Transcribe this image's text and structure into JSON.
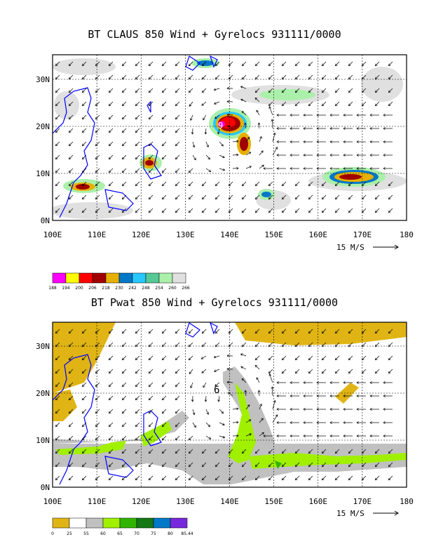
{
  "panels": [
    {
      "title": "BT CLAUS 850 Wind + Gyrelocs 931111/0000",
      "x_ticks": [
        "100E",
        "110E",
        "120E",
        "130E",
        "140E",
        "150E",
        "160E",
        "170E",
        "180"
      ],
      "y_ticks": [
        "0N",
        "10N",
        "20N",
        "30N"
      ],
      "ref_vector_label": "15 M/S",
      "gyre_marker": "9",
      "colorbar": {
        "colors": [
          "#ff00ff",
          "#ffff00",
          "#ff0000",
          "#a00000",
          "#e6b000",
          "#0078c8",
          "#28c8ff",
          "#55c896",
          "#aaf0aa",
          "#e0e0e0"
        ],
        "labels": [
          "188",
          "194",
          "200",
          "206",
          "218",
          "230",
          "242",
          "248",
          "254",
          "260",
          "266"
        ]
      }
    },
    {
      "title": "BT Pwat 850 Wind + Gyrelocs 931111/0000",
      "x_ticks": [
        "100E",
        "110E",
        "120E",
        "130E",
        "140E",
        "150E",
        "160E",
        "170E",
        "180"
      ],
      "y_ticks": [
        "0N",
        "10N",
        "20N",
        "30N"
      ],
      "ref_vector_label": "15 M/S",
      "gyre_marker": "6",
      "colorbar": {
        "colors": [
          "#e0b414",
          "#ffffff",
          "#c0c0c0",
          "#a0f000",
          "#30b400",
          "#147814",
          "#0078c8",
          "#7828dc"
        ],
        "labels": [
          "0",
          "25",
          "55",
          "60",
          "65",
          "70",
          "75",
          "80",
          "85.44"
        ]
      }
    }
  ]
}
